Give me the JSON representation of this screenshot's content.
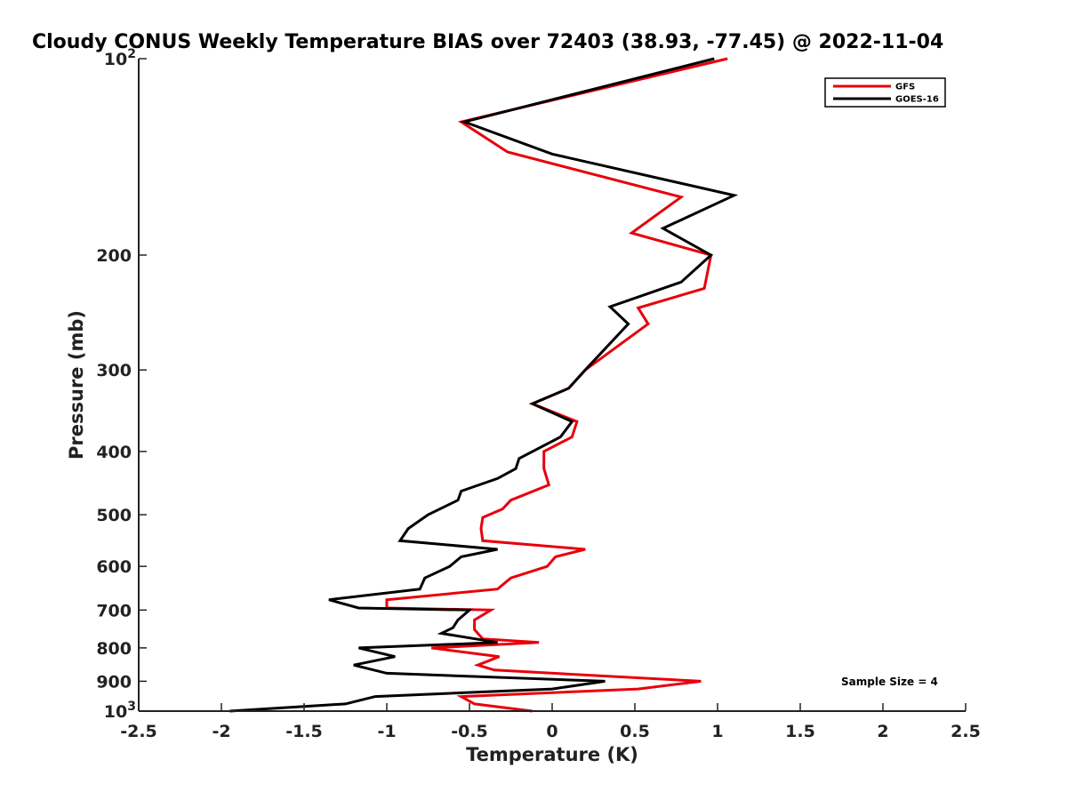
{
  "chart_data": {
    "type": "line",
    "title": "Cloudy CONUS Weekly Temperature BIAS over 72403 (38.93, -77.45) @ 2022-11-04",
    "xlabel": "Temperature (K)",
    "ylabel": "Pressure (mb)",
    "xlim": [
      -2.5,
      2.5
    ],
    "ylim": [
      100,
      1000
    ],
    "y_scale": "log",
    "y_reversed": true,
    "grid": false,
    "legend_position": "top-right",
    "x_ticks": [
      "-2.5",
      "-2",
      "-1.5",
      "-1",
      "-0.5",
      "0",
      "0.5",
      "1",
      "1.5",
      "2",
      "2.5"
    ],
    "x_tick_values": [
      -2.5,
      -2,
      -1.5,
      -1,
      -0.5,
      0,
      0.5,
      1,
      1.5,
      2,
      2.5
    ],
    "y_ticks": [
      {
        "value": 100,
        "base": "10",
        "exp": "2"
      },
      {
        "value": 200,
        "label": "200"
      },
      {
        "value": 300,
        "label": "300"
      },
      {
        "value": 400,
        "label": "400"
      },
      {
        "value": 500,
        "label": "500"
      },
      {
        "value": 600,
        "label": "600"
      },
      {
        "value": 700,
        "label": "700"
      },
      {
        "value": 800,
        "label": "800"
      },
      {
        "value": 900,
        "label": "900"
      },
      {
        "value": 1000,
        "base": "10",
        "exp": "3"
      }
    ],
    "annotation": "Sample Size = 4",
    "series": [
      {
        "name": "GFS",
        "color": "#e8000b",
        "points": [
          [
            1.06,
            100
          ],
          [
            -0.55,
            125
          ],
          [
            -0.27,
            139
          ],
          [
            0.78,
            163
          ],
          [
            0.48,
            185
          ],
          [
            0.96,
            200
          ],
          [
            0.92,
            225
          ],
          [
            0.52,
            241
          ],
          [
            0.58,
            255
          ],
          [
            0.2,
            300
          ],
          [
            0.1,
            320
          ],
          [
            -0.12,
            338
          ],
          [
            0.15,
            360
          ],
          [
            0.12,
            380
          ],
          [
            -0.05,
            400
          ],
          [
            -0.05,
            425
          ],
          [
            -0.02,
            450
          ],
          [
            -0.25,
            475
          ],
          [
            -0.3,
            490
          ],
          [
            -0.42,
            505
          ],
          [
            -0.43,
            525
          ],
          [
            -0.42,
            548
          ],
          [
            0.2,
            565
          ],
          [
            0.02,
            580
          ],
          [
            -0.03,
            600
          ],
          [
            -0.25,
            625
          ],
          [
            -0.33,
            650
          ],
          [
            -1.0,
            675
          ],
          [
            -1.0,
            695
          ],
          [
            -0.37,
            700
          ],
          [
            -0.47,
            725
          ],
          [
            -0.47,
            750
          ],
          [
            -0.42,
            775
          ],
          [
            -0.08,
            785
          ],
          [
            -0.73,
            800
          ],
          [
            -0.32,
            825
          ],
          [
            -0.45,
            850
          ],
          [
            -0.35,
            865
          ],
          [
            0.9,
            900
          ],
          [
            0.52,
            925
          ],
          [
            -0.55,
            950
          ],
          [
            -0.47,
            975
          ],
          [
            -0.12,
            1000
          ]
        ]
      },
      {
        "name": "GOES-16",
        "color": "#000000",
        "points": [
          [
            0.98,
            100
          ],
          [
            -0.53,
            125
          ],
          [
            0.0,
            140
          ],
          [
            1.1,
            162
          ],
          [
            0.67,
            182
          ],
          [
            0.96,
            200
          ],
          [
            0.78,
            220
          ],
          [
            0.35,
            240
          ],
          [
            0.46,
            255
          ],
          [
            0.2,
            300
          ],
          [
            0.1,
            320
          ],
          [
            -0.12,
            338
          ],
          [
            0.12,
            360
          ],
          [
            0.05,
            380
          ],
          [
            -0.2,
            410
          ],
          [
            -0.22,
            425
          ],
          [
            -0.33,
            440
          ],
          [
            -0.55,
            460
          ],
          [
            -0.57,
            475
          ],
          [
            -0.75,
            500
          ],
          [
            -0.87,
            525
          ],
          [
            -0.92,
            548
          ],
          [
            -0.33,
            565
          ],
          [
            -0.55,
            580
          ],
          [
            -0.62,
            600
          ],
          [
            -0.77,
            625
          ],
          [
            -0.8,
            650
          ],
          [
            -1.35,
            675
          ],
          [
            -1.17,
            695
          ],
          [
            -0.5,
            700
          ],
          [
            -0.57,
            725
          ],
          [
            -0.6,
            745
          ],
          [
            -0.67,
            760
          ],
          [
            -0.33,
            785
          ],
          [
            -1.17,
            800
          ],
          [
            -0.95,
            825
          ],
          [
            -1.2,
            850
          ],
          [
            -1.0,
            875
          ],
          [
            0.32,
            900
          ],
          [
            0.0,
            925
          ],
          [
            -1.07,
            950
          ],
          [
            -1.25,
            975
          ],
          [
            -1.95,
            1000
          ]
        ]
      }
    ]
  }
}
